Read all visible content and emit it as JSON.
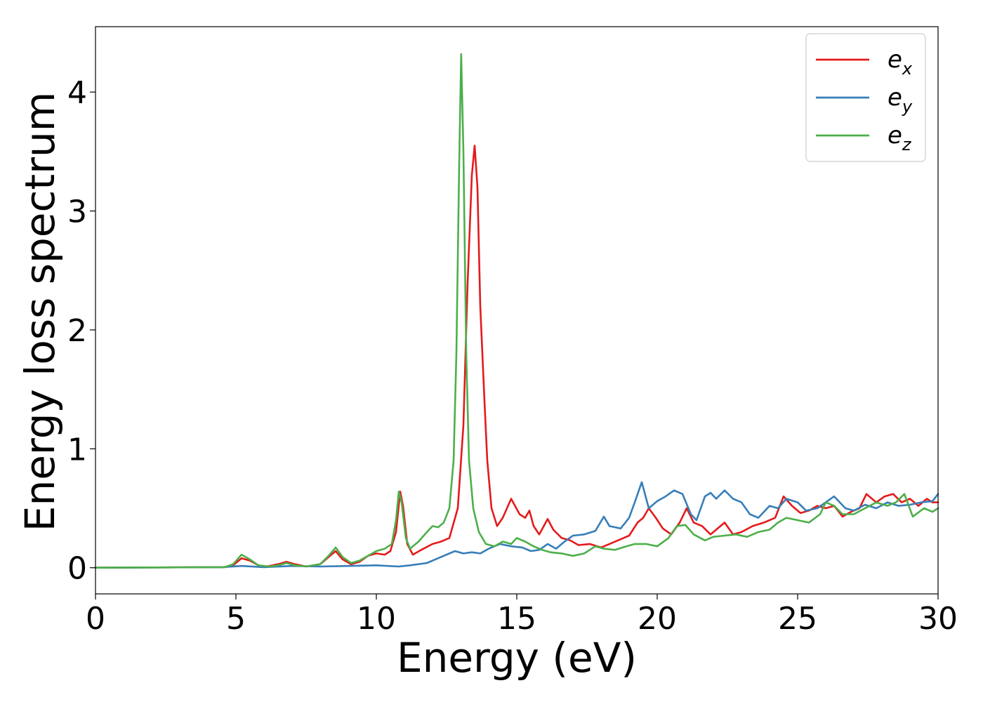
{
  "chart_data": {
    "type": "line",
    "title": "",
    "xlabel": "Energy (eV)",
    "ylabel": "Energy loss spectrum",
    "xlim": [
      0,
      30
    ],
    "ylim": [
      -0.22,
      4.55
    ],
    "xticks": [
      0,
      5,
      10,
      15,
      20,
      25,
      30
    ],
    "xtick_labels": [
      "0",
      "5",
      "10",
      "15",
      "20",
      "25",
      "30"
    ],
    "yticks": [
      0,
      1,
      2,
      3,
      4
    ],
    "ytick_labels": [
      "0",
      "1",
      "2",
      "3",
      "4"
    ],
    "grid": false,
    "legend_position": "top-right",
    "series": [
      {
        "name": "e_x",
        "label_base": "e",
        "label_sub": "x",
        "color": "#e41a1c",
        "points": [
          [
            0,
            0
          ],
          [
            4.6,
            0.005
          ],
          [
            4.9,
            0.02
          ],
          [
            5.2,
            0.08
          ],
          [
            5.5,
            0.06
          ],
          [
            5.8,
            0.02
          ],
          [
            6.1,
            0.01
          ],
          [
            6.5,
            0.03
          ],
          [
            6.8,
            0.05
          ],
          [
            7.1,
            0.03
          ],
          [
            7.5,
            0.01
          ],
          [
            8.0,
            0.03
          ],
          [
            8.3,
            0.09
          ],
          [
            8.55,
            0.14
          ],
          [
            8.8,
            0.07
          ],
          [
            9.1,
            0.03
          ],
          [
            9.4,
            0.05
          ],
          [
            9.7,
            0.1
          ],
          [
            10.0,
            0.12
          ],
          [
            10.3,
            0.11
          ],
          [
            10.5,
            0.14
          ],
          [
            10.7,
            0.3
          ],
          [
            10.85,
            0.64
          ],
          [
            10.95,
            0.52
          ],
          [
            11.1,
            0.2
          ],
          [
            11.3,
            0.11
          ],
          [
            11.6,
            0.15
          ],
          [
            12.0,
            0.2
          ],
          [
            12.3,
            0.22
          ],
          [
            12.6,
            0.25
          ],
          [
            12.9,
            0.5
          ],
          [
            13.1,
            1.2
          ],
          [
            13.25,
            2.4
          ],
          [
            13.4,
            3.3
          ],
          [
            13.5,
            3.55
          ],
          [
            13.6,
            3.2
          ],
          [
            13.7,
            2.2
          ],
          [
            13.85,
            1.4
          ],
          [
            13.95,
            0.9
          ],
          [
            14.1,
            0.5
          ],
          [
            14.3,
            0.35
          ],
          [
            14.5,
            0.42
          ],
          [
            14.8,
            0.58
          ],
          [
            15.1,
            0.45
          ],
          [
            15.3,
            0.42
          ],
          [
            15.45,
            0.48
          ],
          [
            15.6,
            0.35
          ],
          [
            15.8,
            0.28
          ],
          [
            16.1,
            0.41
          ],
          [
            16.3,
            0.32
          ],
          [
            16.6,
            0.25
          ],
          [
            16.9,
            0.23
          ],
          [
            17.2,
            0.19
          ],
          [
            17.6,
            0.2
          ],
          [
            18.0,
            0.17
          ],
          [
            18.3,
            0.2
          ],
          [
            18.6,
            0.23
          ],
          [
            19.0,
            0.27
          ],
          [
            19.3,
            0.38
          ],
          [
            19.5,
            0.42
          ],
          [
            19.7,
            0.5
          ],
          [
            19.95,
            0.42
          ],
          [
            20.2,
            0.33
          ],
          [
            20.5,
            0.28
          ],
          [
            20.8,
            0.38
          ],
          [
            21.05,
            0.5
          ],
          [
            21.3,
            0.38
          ],
          [
            21.6,
            0.35
          ],
          [
            21.9,
            0.28
          ],
          [
            22.2,
            0.34
          ],
          [
            22.4,
            0.38
          ],
          [
            22.7,
            0.28
          ],
          [
            23.0,
            0.3
          ],
          [
            23.4,
            0.35
          ],
          [
            23.8,
            0.38
          ],
          [
            24.2,
            0.42
          ],
          [
            24.5,
            0.6
          ],
          [
            24.8,
            0.52
          ],
          [
            25.1,
            0.46
          ],
          [
            25.4,
            0.48
          ],
          [
            25.7,
            0.52
          ],
          [
            26.0,
            0.5
          ],
          [
            26.3,
            0.52
          ],
          [
            26.6,
            0.43
          ],
          [
            26.9,
            0.47
          ],
          [
            27.2,
            0.5
          ],
          [
            27.45,
            0.62
          ],
          [
            27.8,
            0.55
          ],
          [
            28.1,
            0.6
          ],
          [
            28.4,
            0.62
          ],
          [
            28.7,
            0.55
          ],
          [
            29.0,
            0.58
          ],
          [
            29.3,
            0.52
          ],
          [
            29.6,
            0.58
          ],
          [
            29.8,
            0.55
          ],
          [
            30.0,
            0.55
          ]
        ]
      },
      {
        "name": "e_y",
        "label_base": "e",
        "label_sub": "y",
        "color": "#377eb8",
        "points": [
          [
            0,
            0
          ],
          [
            4.5,
            0.005
          ],
          [
            5.2,
            0.015
          ],
          [
            6.0,
            0.005
          ],
          [
            7.0,
            0.015
          ],
          [
            8.0,
            0.01
          ],
          [
            9.0,
            0.015
          ],
          [
            10.0,
            0.02
          ],
          [
            10.8,
            0.01
          ],
          [
            11.2,
            0.02
          ],
          [
            11.8,
            0.04
          ],
          [
            12.2,
            0.08
          ],
          [
            12.5,
            0.11
          ],
          [
            12.8,
            0.14
          ],
          [
            13.1,
            0.12
          ],
          [
            13.4,
            0.13
          ],
          [
            13.7,
            0.12
          ],
          [
            14.0,
            0.16
          ],
          [
            14.4,
            0.2
          ],
          [
            14.8,
            0.18
          ],
          [
            15.2,
            0.17
          ],
          [
            15.5,
            0.14
          ],
          [
            15.8,
            0.15
          ],
          [
            16.1,
            0.2
          ],
          [
            16.4,
            0.16
          ],
          [
            16.7,
            0.22
          ],
          [
            17.0,
            0.27
          ],
          [
            17.4,
            0.28
          ],
          [
            17.8,
            0.31
          ],
          [
            18.1,
            0.43
          ],
          [
            18.3,
            0.35
          ],
          [
            18.7,
            0.33
          ],
          [
            19.0,
            0.42
          ],
          [
            19.2,
            0.55
          ],
          [
            19.45,
            0.72
          ],
          [
            19.7,
            0.5
          ],
          [
            20.0,
            0.56
          ],
          [
            20.3,
            0.6
          ],
          [
            20.6,
            0.65
          ],
          [
            20.9,
            0.62
          ],
          [
            21.2,
            0.45
          ],
          [
            21.4,
            0.4
          ],
          [
            21.7,
            0.6
          ],
          [
            21.9,
            0.63
          ],
          [
            22.1,
            0.58
          ],
          [
            22.4,
            0.65
          ],
          [
            22.7,
            0.58
          ],
          [
            23.0,
            0.55
          ],
          [
            23.3,
            0.45
          ],
          [
            23.6,
            0.42
          ],
          [
            24.0,
            0.52
          ],
          [
            24.3,
            0.5
          ],
          [
            24.6,
            0.58
          ],
          [
            25.0,
            0.55
          ],
          [
            25.3,
            0.48
          ],
          [
            25.7,
            0.5
          ],
          [
            26.0,
            0.55
          ],
          [
            26.3,
            0.6
          ],
          [
            26.7,
            0.5
          ],
          [
            27.0,
            0.48
          ],
          [
            27.4,
            0.53
          ],
          [
            27.8,
            0.5
          ],
          [
            28.2,
            0.55
          ],
          [
            28.6,
            0.52
          ],
          [
            29.0,
            0.53
          ],
          [
            29.4,
            0.55
          ],
          [
            29.8,
            0.56
          ],
          [
            30.0,
            0.62
          ]
        ]
      },
      {
        "name": "e_z",
        "label_base": "e",
        "label_sub": "z",
        "color": "#4daf4a",
        "points": [
          [
            0,
            0
          ],
          [
            4.6,
            0.005
          ],
          [
            4.9,
            0.03
          ],
          [
            5.2,
            0.11
          ],
          [
            5.5,
            0.07
          ],
          [
            5.8,
            0.02
          ],
          [
            6.2,
            0.01
          ],
          [
            6.5,
            0.02
          ],
          [
            6.8,
            0.04
          ],
          [
            7.1,
            0.02
          ],
          [
            7.5,
            0.01
          ],
          [
            8.0,
            0.03
          ],
          [
            8.3,
            0.1
          ],
          [
            8.55,
            0.17
          ],
          [
            8.8,
            0.09
          ],
          [
            9.1,
            0.04
          ],
          [
            9.4,
            0.06
          ],
          [
            9.7,
            0.1
          ],
          [
            10.0,
            0.14
          ],
          [
            10.3,
            0.16
          ],
          [
            10.55,
            0.2
          ],
          [
            10.7,
            0.4
          ],
          [
            10.8,
            0.64
          ],
          [
            10.9,
            0.55
          ],
          [
            11.05,
            0.25
          ],
          [
            11.2,
            0.16
          ],
          [
            11.5,
            0.22
          ],
          [
            11.8,
            0.3
          ],
          [
            12.0,
            0.35
          ],
          [
            12.2,
            0.34
          ],
          [
            12.4,
            0.38
          ],
          [
            12.6,
            0.5
          ],
          [
            12.75,
            0.9
          ],
          [
            12.85,
            1.8
          ],
          [
            12.95,
            3.4
          ],
          [
            13.02,
            4.32
          ],
          [
            13.1,
            3.5
          ],
          [
            13.2,
            1.8
          ],
          [
            13.3,
            0.9
          ],
          [
            13.45,
            0.5
          ],
          [
            13.65,
            0.3
          ],
          [
            13.9,
            0.2
          ],
          [
            14.2,
            0.18
          ],
          [
            14.5,
            0.22
          ],
          [
            14.8,
            0.2
          ],
          [
            15.0,
            0.25
          ],
          [
            15.3,
            0.22
          ],
          [
            15.6,
            0.18
          ],
          [
            15.9,
            0.15
          ],
          [
            16.2,
            0.13
          ],
          [
            16.6,
            0.12
          ],
          [
            17.0,
            0.1
          ],
          [
            17.4,
            0.12
          ],
          [
            17.8,
            0.18
          ],
          [
            18.1,
            0.16
          ],
          [
            18.5,
            0.15
          ],
          [
            18.9,
            0.18
          ],
          [
            19.2,
            0.2
          ],
          [
            19.6,
            0.2
          ],
          [
            20.0,
            0.18
          ],
          [
            20.4,
            0.25
          ],
          [
            20.7,
            0.35
          ],
          [
            21.0,
            0.36
          ],
          [
            21.3,
            0.28
          ],
          [
            21.7,
            0.23
          ],
          [
            22.0,
            0.26
          ],
          [
            22.4,
            0.27
          ],
          [
            22.8,
            0.28
          ],
          [
            23.2,
            0.26
          ],
          [
            23.6,
            0.3
          ],
          [
            24.0,
            0.32
          ],
          [
            24.3,
            0.38
          ],
          [
            24.6,
            0.42
          ],
          [
            25.0,
            0.4
          ],
          [
            25.4,
            0.38
          ],
          [
            25.8,
            0.45
          ],
          [
            26.0,
            0.55
          ],
          [
            26.3,
            0.52
          ],
          [
            26.6,
            0.45
          ],
          [
            27.0,
            0.45
          ],
          [
            27.4,
            0.5
          ],
          [
            27.8,
            0.55
          ],
          [
            28.2,
            0.52
          ],
          [
            28.5,
            0.55
          ],
          [
            28.8,
            0.62
          ],
          [
            29.1,
            0.43
          ],
          [
            29.5,
            0.5
          ],
          [
            29.8,
            0.47
          ],
          [
            30.0,
            0.5
          ]
        ]
      }
    ]
  }
}
